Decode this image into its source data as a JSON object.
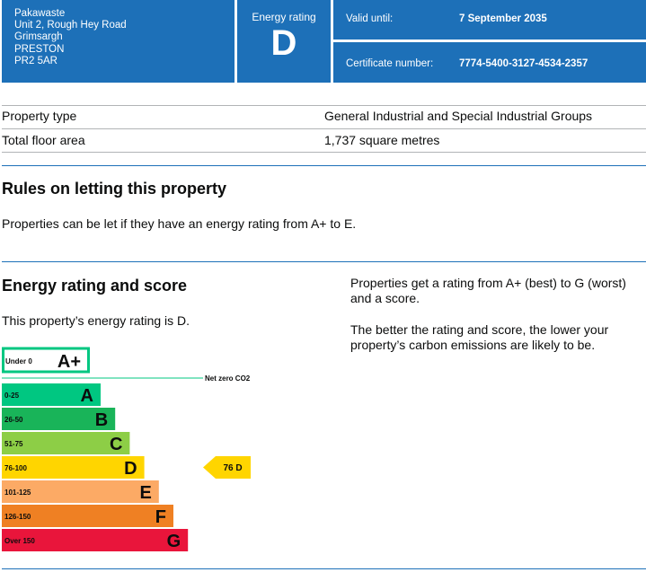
{
  "header": {
    "address_lines": [
      "Pakawaste",
      "Unit 2, Rough Hey Road",
      "Grimsargh",
      "PRESTON",
      "PR2 5AR"
    ],
    "energy_rating_label": "Energy rating",
    "energy_rating_value": "D",
    "valid_until_label": "Valid until:",
    "valid_until_value": "7 September 2035",
    "certificate_label": "Certificate number:",
    "certificate_value": "7774-5400-3127-4534-2357"
  },
  "property": {
    "type_label": "Property type",
    "type_value": "General Industrial and Special Industrial Groups",
    "area_label": "Total floor area",
    "area_value": "1,737 square metres"
  },
  "rules": {
    "heading": "Rules on letting this property",
    "text": "Properties can be let if they have an energy rating from A+ to E."
  },
  "energy": {
    "heading": "Energy rating and score",
    "text": "This property’s energy rating is D.",
    "right_text_1": "Properties get a rating from A+ (best) to G (worst) and a score.",
    "right_text_2": "The better the rating and score, the lower your property’s carbon emissions are likely to be."
  },
  "chart_data": {
    "type": "bar",
    "bands": [
      {
        "range": "Under 0",
        "letter": "A+",
        "color": "#ffffff",
        "border": "#00c781",
        "level": 0
      },
      {
        "range": "0-25",
        "letter": "A",
        "color": "#00c781",
        "level": 1
      },
      {
        "range": "26-50",
        "letter": "B",
        "color": "#19b459",
        "level": 2
      },
      {
        "range": "51-75",
        "letter": "C",
        "color": "#8dce46",
        "level": 3
      },
      {
        "range": "76-100",
        "letter": "D",
        "color": "#ffd500",
        "level": 4
      },
      {
        "range": "101-125",
        "letter": "E",
        "color": "#fcaa65",
        "level": 5
      },
      {
        "range": "126-150",
        "letter": "F",
        "color": "#ef8023",
        "level": 6
      },
      {
        "range": "Over 150",
        "letter": "G",
        "color": "#e9153b",
        "level": 7
      }
    ],
    "net_zero_label": "Net zero CO2",
    "current_score": 76,
    "current_letter": "D",
    "current_label": "76  D",
    "current_color": "#ffd500"
  }
}
